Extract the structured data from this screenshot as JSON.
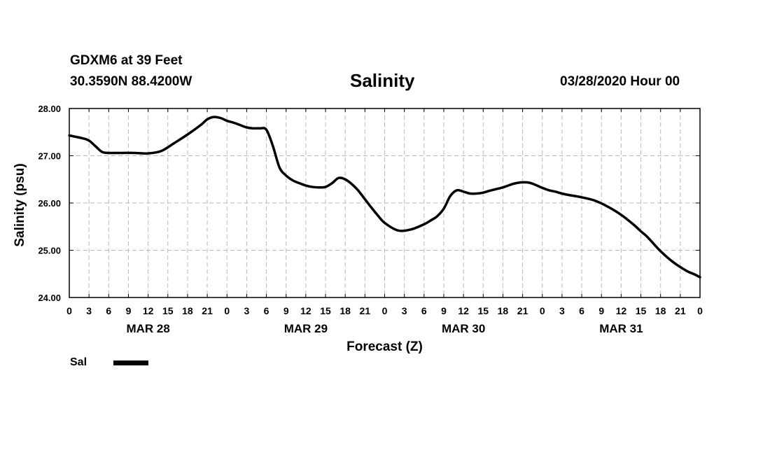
{
  "header": {
    "station": "GDXM6 at 39 Feet",
    "coords": "30.3590N 88.4200W",
    "runtime": "03/28/2020 Hour 00"
  },
  "legend": {
    "label": "Sal",
    "color": "#000000"
  },
  "chart_data": {
    "type": "line",
    "title": "Salinity",
    "xlabel": "Forecast (Z)",
    "ylabel": "Salinity (psu)",
    "ylim": [
      24.0,
      28.0
    ],
    "yticks": [
      "24.00",
      "25.00",
      "26.00",
      "27.00",
      "28.00"
    ],
    "y_tick_values": [
      24.0,
      25.0,
      26.0,
      27.0,
      28.0
    ],
    "xlim": [
      0,
      96
    ],
    "x_unit": "forecast hour",
    "x_tick_labels": [
      "0",
      "3",
      "6",
      "9",
      "12",
      "15",
      "18",
      "21",
      "0",
      "3",
      "6",
      "9",
      "12",
      "15",
      "18",
      "21",
      "0",
      "3",
      "6",
      "9",
      "12",
      "15",
      "18",
      "21",
      "0",
      "3",
      "6",
      "9",
      "12",
      "15",
      "18",
      "21",
      "0"
    ],
    "date_labels": [
      {
        "label": "MAR 28",
        "hour": 12
      },
      {
        "label": "MAR 29",
        "hour": 36
      },
      {
        "label": "MAR 30",
        "hour": 60
      },
      {
        "label": "MAR 31",
        "hour": 84
      }
    ],
    "grid": true,
    "series": [
      {
        "name": "Sal",
        "color": "#000000",
        "x": [
          0,
          2,
          3,
          4,
          5,
          6,
          8,
          10,
          12,
          14,
          16,
          18,
          20,
          21,
          22,
          23,
          24,
          25,
          26,
          27,
          28,
          29,
          30,
          31,
          32,
          33,
          34,
          35,
          36,
          37,
          38,
          39,
          40,
          41,
          42,
          43,
          44,
          45,
          46,
          47,
          48,
          50,
          52,
          54,
          55,
          56,
          57,
          58,
          59,
          60,
          61,
          62,
          63,
          64,
          66,
          68,
          70,
          72,
          73,
          74,
          75,
          76,
          78,
          80,
          82,
          84,
          86,
          87,
          88,
          90,
          92,
          94,
          95,
          96
        ],
        "values": [
          27.43,
          27.37,
          27.32,
          27.2,
          27.08,
          27.06,
          27.06,
          27.06,
          27.05,
          27.1,
          27.27,
          27.45,
          27.65,
          27.77,
          27.82,
          27.8,
          27.74,
          27.7,
          27.65,
          27.6,
          27.58,
          27.58,
          27.55,
          27.2,
          26.75,
          26.58,
          26.48,
          26.42,
          26.37,
          26.34,
          26.33,
          26.34,
          26.42,
          26.53,
          26.5,
          26.4,
          26.26,
          26.08,
          25.9,
          25.73,
          25.58,
          25.42,
          25.44,
          25.55,
          25.63,
          25.72,
          25.88,
          26.15,
          26.27,
          26.24,
          26.2,
          26.2,
          26.22,
          26.26,
          26.33,
          26.42,
          26.43,
          26.32,
          26.27,
          26.24,
          26.2,
          26.17,
          26.12,
          26.05,
          25.92,
          25.75,
          25.53,
          25.4,
          25.28,
          24.98,
          24.74,
          24.56,
          24.5,
          24.43
        ]
      }
    ]
  }
}
